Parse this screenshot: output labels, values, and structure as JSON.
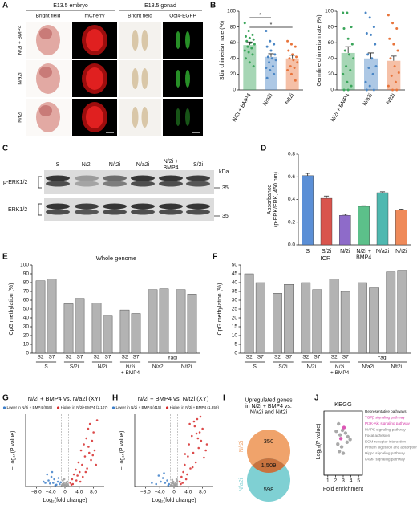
{
  "panel_labels": [
    "A",
    "B",
    "C",
    "D",
    "E",
    "F",
    "G",
    "H",
    "I",
    "J"
  ],
  "panel_a": {
    "headers": [
      "E13.5 embryo",
      "E13.5 gonad"
    ],
    "columns": [
      "Bright field",
      "mCherry",
      "Bright field",
      "Oct4-EGFP"
    ],
    "rows": [
      "N/2i + BMP4",
      "N/a2i",
      "N/t2i"
    ]
  },
  "panel_c": {
    "lanes": [
      "S",
      "N/2i",
      "N/t2i",
      "N/a2i",
      "N/2i +\nBMP4",
      "S/2i"
    ],
    "unit": "kDa",
    "markers": [
      35,
      35
    ],
    "blots": [
      "p-ERK1/2",
      "ERK1/2"
    ]
  },
  "chart_data": [
    {
      "type": "bar",
      "categories": [
        "N/2i + BMP4",
        "N/a2i",
        "N/t2i"
      ],
      "colors": [
        "#3aa55a",
        "#4a86c5",
        "#e8743b"
      ],
      "values": [
        57,
        42,
        40
      ],
      "errors": [
        4,
        4,
        4
      ],
      "points": [
        [
          85,
          75,
          70,
          68,
          66,
          64,
          62,
          60,
          58,
          55,
          53,
          50,
          48,
          45,
          40,
          35,
          30
        ],
        [
          75,
          62,
          58,
          55,
          50,
          45,
          42,
          40,
          38,
          35,
          30,
          28,
          25,
          20,
          15
        ],
        [
          62,
          58,
          55,
          50,
          45,
          42,
          40,
          38,
          35,
          30,
          28,
          25,
          20,
          12
        ]
      ],
      "y_label": "Skin chimerism rate (%)",
      "ylim": [
        0,
        100
      ],
      "yticks": [
        0,
        20,
        40,
        60,
        80,
        100
      ],
      "significance": [
        {
          "between": [
            "N/2i + BMP4",
            "N/a2i"
          ],
          "label": "*"
        },
        {
          "between": [
            "N/2i + BMP4",
            "N/t2i"
          ],
          "label": "*"
        }
      ]
    },
    {
      "type": "bar",
      "categories": [
        "N/2i + BMP4",
        "N/a2i",
        "N/t2i"
      ],
      "colors": [
        "#3aa55a",
        "#4a86c5",
        "#e8743b"
      ],
      "values": [
        47,
        40,
        37
      ],
      "errors": [
        8,
        7,
        6
      ],
      "points": [
        [
          98,
          98,
          80,
          78,
          65,
          58,
          50,
          45,
          40,
          30,
          25,
          20,
          10,
          5,
          0,
          0
        ],
        [
          98,
          92,
          80,
          72,
          70,
          58,
          45,
          40,
          30,
          28,
          20,
          10,
          5,
          0,
          0
        ],
        [
          95,
          85,
          78,
          65,
          58,
          50,
          40,
          30,
          22,
          18,
          10,
          5,
          0,
          0
        ]
      ],
      "y_label": "Germline chimerism rate (%)",
      "ylim": [
        0,
        100
      ],
      "yticks": [
        0,
        20,
        40,
        60,
        80,
        100
      ]
    },
    {
      "type": "bar",
      "categories": [
        "S",
        "S/2i",
        "N/2i",
        "N/2i +\nBMP4",
        "N/a2i",
        "N/t2i"
      ],
      "colors": [
        "#5b8fd6",
        "#d9544d",
        "#8e6bc9",
        "#5cc08a",
        "#4fb8b0",
        "#ef8a5a"
      ],
      "values": [
        0.61,
        0.41,
        0.26,
        0.34,
        0.46,
        0.31
      ],
      "errors": [
        0.02,
        0.02,
        0.01,
        0.005,
        0.008,
        0.005
      ],
      "y_label": "Absorbance\n(p-ERK/ERK, 450 nm)",
      "ylim": [
        0,
        0.8
      ],
      "yticks": [
        {
          "value": 0,
          "label": "0.0"
        },
        0.2,
        0.4,
        0.6,
        0.8
      ]
    },
    {
      "type": "bar",
      "title": "Whole genome",
      "categories": [
        "S2",
        "S7",
        "S2",
        "S7",
        "S2",
        "S7",
        "S2",
        "S7",
        null,
        null,
        null,
        null
      ],
      "groups": [
        "S",
        "S",
        "S/2i",
        "S/2i",
        "N/2i",
        "N/2i",
        "N/2i\n+ BMP4",
        "N/2i\n+ BMP4",
        "N/a2i",
        "N/a2i",
        "N/t2i",
        "N/t2i"
      ],
      "sources": [
        null,
        null,
        null,
        null,
        null,
        null,
        null,
        null,
        "Yagi",
        "Yagi",
        "Yagi",
        "Yagi"
      ],
      "values": [
        82,
        84,
        56,
        62,
        57,
        43,
        49,
        45,
        72,
        73,
        72,
        67
      ],
      "color": "#b3b3b3",
      "y_label": "CpG methylation (%)",
      "ylim": [
        0,
        100
      ],
      "yticks": [
        0,
        10,
        20,
        30,
        40,
        50,
        60,
        70,
        80,
        90,
        100
      ]
    },
    {
      "type": "bar",
      "title": "ICR",
      "categories": [
        "S2",
        "S7",
        "S2",
        "S7",
        "S2",
        "S7",
        "S2",
        "S7",
        null,
        null,
        null,
        null
      ],
      "groups": [
        "S",
        "S",
        "S/2i",
        "S/2i",
        "N/2i",
        "N/2i",
        "N/2i\n+ BMP4",
        "N/2i\n+ BMP4",
        "N/a2i",
        "N/a2i",
        "N/t2i",
        "N/t2i"
      ],
      "sources": [
        null,
        null,
        null,
        null,
        null,
        null,
        null,
        null,
        "Yagi",
        "Yagi",
        "Yagi",
        "Yagi"
      ],
      "values": [
        45,
        40,
        34,
        39,
        40,
        36,
        42,
        35,
        40,
        37,
        46,
        47
      ],
      "color": "#b3b3b3",
      "y_label": "CpG methylation (%)",
      "ylim": [
        0,
        50
      ],
      "yticks": [
        0,
        5,
        10,
        15,
        20,
        25,
        30,
        35,
        40,
        45,
        50
      ]
    },
    {
      "type": "scatter",
      "title": "N/2i + BMP4 vs. N/a2i (XY)",
      "x_label": "Log₂(fold change)",
      "y_label": "−Log₁₀(P value)",
      "xlim": [
        -11,
        11
      ],
      "xticks": [
        {
          "value": -8,
          "label": "−8.0"
        },
        {
          "value": -4,
          "label": "−4.0"
        },
        0,
        {
          "value": 4,
          "label": "4.0"
        },
        {
          "value": 8,
          "label": "8.0"
        }
      ],
      "ylim": [
        0,
        60
      ],
      "vlines": [
        -1,
        1
      ],
      "series": [
        {
          "color": "#9a9a9a",
          "x": [
            -0.9,
            -0.7,
            -0.5,
            -0.3,
            -0.1,
            0.1,
            0.3,
            0.5,
            0.7,
            0.9,
            -0.6,
            0.4,
            -0.2,
            0.8,
            0.0,
            -0.4
          ],
          "values": [
            1,
            2,
            0.5,
            3,
            1.5,
            0.8,
            2.5,
            1.2,
            4,
            0.6,
            5,
            3.5,
            6,
            2,
            0.3,
            1.8
          ]
        },
        {
          "name": "Lower in N/2i + BMP4 (959)",
          "color": "#3d7fc9",
          "x": [
            -1.5,
            -2.0,
            -2.4,
            -3.0,
            -3.3,
            -3.8,
            -4.2,
            -4.6,
            -5.0,
            -5.5,
            -1.8,
            -2.7,
            -3.6,
            -6.0,
            -1.2
          ],
          "values": [
            2,
            4,
            1.5,
            6,
            3,
            8,
            2.5,
            5,
            10,
            3,
            7,
            1,
            12,
            4,
            3.5
          ]
        },
        {
          "name": "Higher in N/2i+BMP4 (2,107)",
          "color": "#d62a2a",
          "x": [
            1.5,
            2.0,
            2.5,
            3.0,
            3.2,
            3.8,
            4.1,
            4.5,
            4.8,
            5.0,
            5.3,
            5.6,
            6.0,
            6.2,
            6.5,
            6.8,
            7.0,
            7.3,
            7.6,
            8.0,
            8.3,
            8.7,
            9.0,
            2.2,
            3.5,
            4.3,
            5.8,
            6.6,
            7.8,
            1.8
          ],
          "values": [
            3,
            6,
            10,
            14,
            5,
            20,
            12,
            30,
            18,
            8,
            35,
            25,
            40,
            15,
            48,
            28,
            52,
            22,
            38,
            45,
            30,
            18,
            55,
            2,
            9,
            4,
            12,
            33,
            26,
            1.5
          ]
        }
      ]
    },
    {
      "type": "scatter",
      "title": "N/2i + BMP4 vs. N/t2i (XY)",
      "x_label": "Log₂(fold change)",
      "y_label": "−Log₁₀(P value)",
      "xlim": [
        -11,
        11
      ],
      "xticks": [
        {
          "value": -8,
          "label": "−8.0"
        },
        {
          "value": -4,
          "label": "−4.0"
        },
        0,
        {
          "value": 4,
          "label": "4.0"
        },
        {
          "value": 8,
          "label": "8.0"
        }
      ],
      "ylim": [
        0,
        60
      ],
      "vlines": [
        -1,
        1
      ],
      "series": [
        {
          "color": "#9a9a9a",
          "x": [
            -0.8,
            -0.6,
            -0.4,
            -0.2,
            0.0,
            0.2,
            0.4,
            0.6,
            0.8,
            -0.9,
            0.9,
            -0.5,
            0.5,
            0.1,
            -0.3,
            0.7
          ],
          "values": [
            1.5,
            3,
            0.7,
            4,
            2,
            1,
            3.2,
            0.9,
            2.2,
            0.5,
            4.5,
            5.5,
            1.7,
            0.4,
            2.8,
            6
          ]
        },
        {
          "name": "Lower in N/2i + BMP4 (415)",
          "color": "#3d7fc9",
          "x": [
            -1.4,
            -1.9,
            -2.5,
            -3.1,
            -3.7,
            -4.3,
            -5.0,
            -1.6,
            -2.8,
            -6.2
          ],
          "values": [
            2,
            5,
            3,
            7,
            4,
            9,
            2,
            1,
            11,
            3
          ]
        },
        {
          "name": "Higher in N/2i + BMP4 (1,859)",
          "color": "#d62a2a",
          "x": [
            1.6,
            2.1,
            2.6,
            3.0,
            3.4,
            3.9,
            4.2,
            4.6,
            5.0,
            5.4,
            5.8,
            6.1,
            6.5,
            6.9,
            7.2,
            7.6,
            8.0,
            8.4,
            8.9,
            2.4,
            3.7,
            4.4,
            5.2,
            6.3,
            7.4,
            1.9,
            9.2,
            3.1,
            5.6,
            6.7
          ],
          "values": [
            4,
            8,
            12,
            18,
            6,
            25,
            35,
            15,
            42,
            28,
            50,
            20,
            56,
            32,
            45,
            38,
            48,
            24,
            30,
            3,
            10,
            52,
            16,
            44,
            58,
            2,
            35,
            27,
            54,
            40
          ]
        }
      ]
    },
    {
      "type": "venn",
      "title": "Upregulated genes\nin N/2i + BMP4 vs.\nN/a2i and N/t2i",
      "sets": [
        {
          "name": "N/t2i",
          "color": "#f0a36b",
          "values": 350
        },
        {
          "name": "N/a2i",
          "color": "#7fd0d3",
          "values": 598
        }
      ],
      "overlap": {
        "value": 1509,
        "label": "1,509"
      }
    },
    {
      "type": "scatter",
      "title": "KEGG",
      "x_label": "Fold enrichment",
      "y_label": "−Log₁₀(P value)",
      "box": true,
      "xlim": [
        0.5,
        5.5
      ],
      "xticks": [
        1,
        2,
        3,
        4,
        5
      ],
      "ylim": [
        0,
        7
      ],
      "series": [
        {
          "color": "#9a9a9a",
          "x": [
            2.1,
            2.4,
            2.6,
            2.9,
            3.3,
            3.5,
            2.3,
            2.8,
            3.6,
            3.9,
            2.5,
            3.0
          ],
          "values": [
            4.8,
            5.6,
            4.4,
            4.9,
            4.6,
            3.6,
            3.4,
            3.1,
            4.2,
            3.9,
            2.6,
            2.4
          ]
        },
        {
          "color": "#d63aa8",
          "x": [
            3.1,
            2.7
          ],
          "values": [
            5.2,
            4.0
          ]
        }
      ],
      "legend_title": "Representative pathways:",
      "pathways": [
        {
          "name": "TGFβ signaling pathway",
          "color": "#d63aa8"
        },
        {
          "name": "PI3K-Akt signaling pathway",
          "color": "#d63aa8"
        },
        {
          "name": "MAPK signaling pathway",
          "color": "#777777"
        },
        {
          "name": "Focal adhesion",
          "color": "#777777"
        },
        {
          "name": "ECM-receptor interaction",
          "color": "#777777"
        },
        {
          "name": "Protein digestion and absorption",
          "color": "#777777"
        },
        {
          "name": "Hippo signaling pathway",
          "color": "#777777"
        },
        {
          "name": "cAMP signaling pathway",
          "color": "#777777"
        }
      ]
    }
  ]
}
